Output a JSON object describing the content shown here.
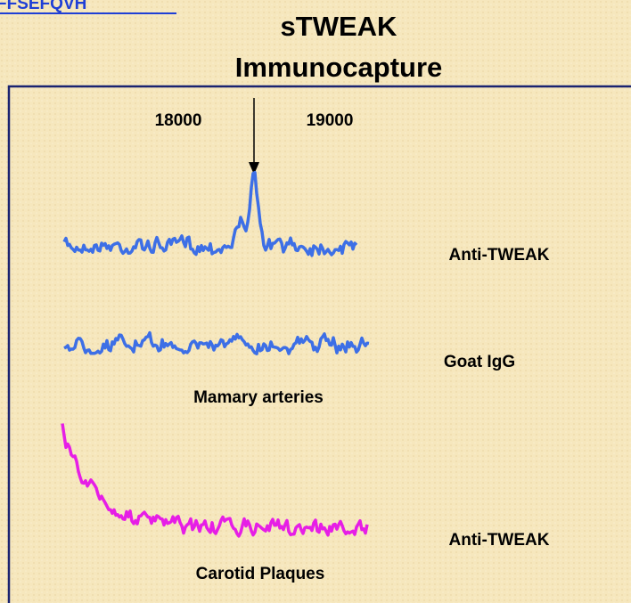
{
  "header": {
    "link": "FFSEFQVH",
    "title_line1": "sTWEAK",
    "title_line2": "Immunocapture"
  },
  "figure": {
    "markers": [
      "18000",
      "19000"
    ],
    "traces": [
      {
        "label": "Anti-TWEAK"
      },
      {
        "label": "Goat IgG"
      },
      {
        "label": "Anti-TWEAK"
      }
    ],
    "groups": [
      "Mamary arteries",
      "Carotid Plaques"
    ]
  }
}
